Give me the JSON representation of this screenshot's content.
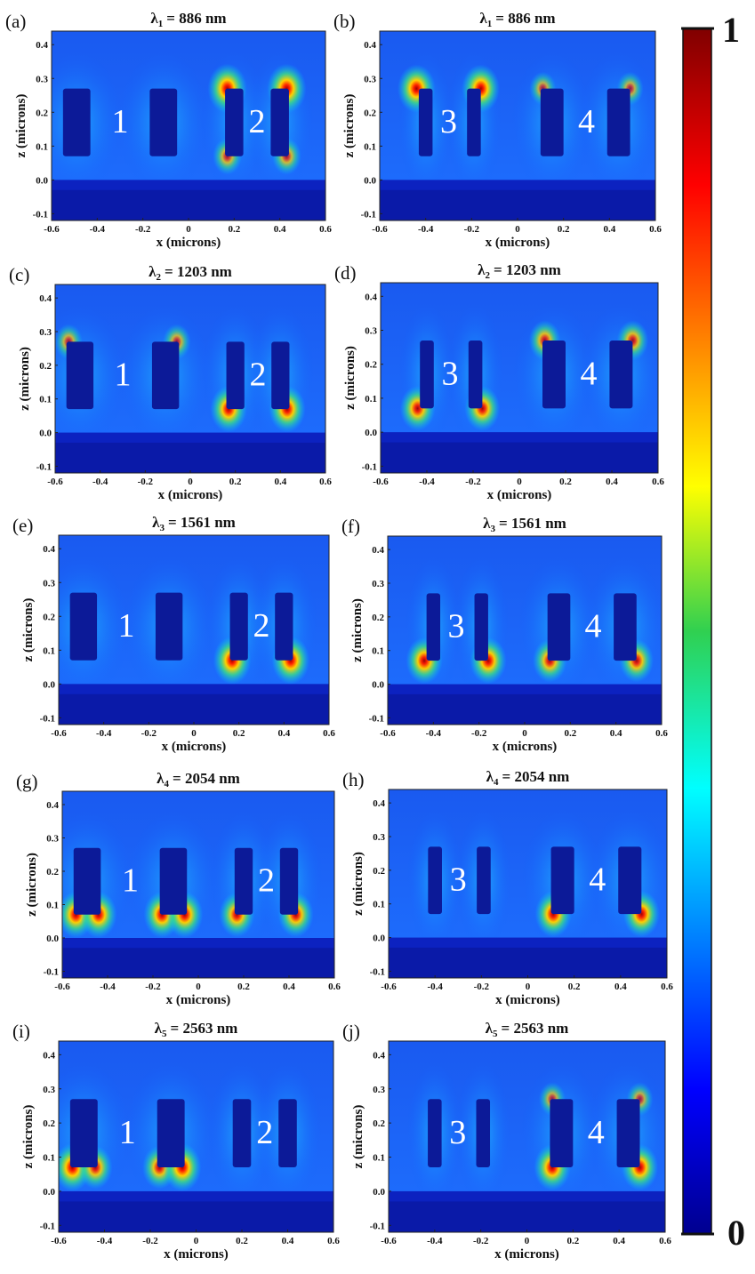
{
  "chart_data": {
    "type": "heatmap",
    "colormap": "jet",
    "colorbar": {
      "min_label": "0",
      "max_label": "1",
      "range": [
        0,
        1
      ]
    },
    "xlim": [
      -0.6,
      0.6
    ],
    "ylim": [
      -0.12,
      0.44
    ],
    "xticks": [
      "-0.6",
      "-0.4",
      "-0.2",
      "0",
      "0.2",
      "0.4",
      "0.6"
    ],
    "yticks": [
      "-0.1",
      "0.0",
      "0.1",
      "0.2",
      "0.3",
      "0.4"
    ],
    "xlabel": "x (microns)",
    "ylabel": "z (microns)",
    "panels": [
      {
        "label": "(a)",
        "lambda": "λ",
        "sub": "1",
        "value": "= 886 nm",
        "pair_labels": [
          "1",
          "2"
        ],
        "set": "A",
        "hotspots": [
          [
            0.17,
            0.27,
            1.0
          ],
          [
            0.43,
            0.27,
            1.0
          ],
          [
            0.17,
            0.07,
            0.6
          ],
          [
            0.43,
            0.07,
            0.6
          ]
        ]
      },
      {
        "label": "(b)",
        "lambda": "λ",
        "sub": "1",
        "value": "= 886 nm",
        "pair_labels": [
          "3",
          "4"
        ],
        "set": "B",
        "hotspots": [
          [
            -0.44,
            0.27,
            0.95
          ],
          [
            -0.16,
            0.27,
            0.95
          ],
          [
            0.11,
            0.27,
            0.5
          ],
          [
            0.49,
            0.27,
            0.5
          ]
        ]
      },
      {
        "label": "(c)",
        "lambda": "λ",
        "sub": "2",
        "value": "= 1203 nm",
        "pair_labels": [
          "1",
          "2"
        ],
        "set": "A",
        "hotspots": [
          [
            0.17,
            0.07,
            0.9
          ],
          [
            0.43,
            0.07,
            0.9
          ],
          [
            -0.54,
            0.27,
            0.55
          ],
          [
            -0.06,
            0.27,
            0.55
          ]
        ]
      },
      {
        "label": "(d)",
        "lambda": "λ",
        "sub": "2",
        "value": "= 1203 nm",
        "pair_labels": [
          "3",
          "4"
        ],
        "set": "B",
        "hotspots": [
          [
            -0.44,
            0.07,
            0.85
          ],
          [
            -0.16,
            0.07,
            0.85
          ],
          [
            0.11,
            0.27,
            0.7
          ],
          [
            0.49,
            0.27,
            0.7
          ]
        ]
      },
      {
        "label": "(e)",
        "lambda": "λ",
        "sub": "3",
        "value": "= 1561 nm",
        "pair_labels": [
          "1",
          "2"
        ],
        "set": "A",
        "hotspots": [
          [
            0.17,
            0.07,
            0.95
          ],
          [
            0.43,
            0.07,
            0.95
          ]
        ]
      },
      {
        "label": "(f)",
        "lambda": "λ",
        "sub": "3",
        "value": "= 1561 nm",
        "pair_labels": [
          "3",
          "4"
        ],
        "set": "B",
        "hotspots": [
          [
            -0.44,
            0.07,
            0.9
          ],
          [
            -0.16,
            0.07,
            0.9
          ],
          [
            0.11,
            0.07,
            0.8
          ],
          [
            0.49,
            0.07,
            0.8
          ]
        ]
      },
      {
        "label": "(g)",
        "lambda": "λ",
        "sub": "4",
        "value": "= 2054 nm",
        "pair_labels": [
          "1",
          "2"
        ],
        "set": "A",
        "hotspots": [
          [
            -0.54,
            0.07,
            0.9
          ],
          [
            -0.44,
            0.07,
            0.9
          ],
          [
            -0.16,
            0.07,
            0.9
          ],
          [
            -0.06,
            0.07,
            0.9
          ],
          [
            0.17,
            0.07,
            0.85
          ],
          [
            0.43,
            0.07,
            0.85
          ]
        ]
      },
      {
        "label": "(h)",
        "lambda": "λ",
        "sub": "4",
        "value": "= 2054 nm",
        "pair_labels": [
          "3",
          "4"
        ],
        "set": "B",
        "hotspots": [
          [
            0.11,
            0.07,
            0.9
          ],
          [
            0.49,
            0.07,
            0.9
          ]
        ]
      },
      {
        "label": "(i)",
        "lambda": "λ",
        "sub": "5",
        "value": "= 2563 nm",
        "pair_labels": [
          "1",
          "2"
        ],
        "set": "A",
        "hotspots": [
          [
            -0.54,
            0.07,
            0.95
          ],
          [
            -0.44,
            0.07,
            0.8
          ],
          [
            -0.16,
            0.07,
            0.8
          ],
          [
            -0.06,
            0.07,
            0.95
          ]
        ]
      },
      {
        "label": "(j)",
        "lambda": "λ",
        "sub": "5",
        "value": "= 2563 nm",
        "pair_labels": [
          "3",
          "4"
        ],
        "set": "B",
        "hotspots": [
          [
            0.11,
            0.07,
            0.9
          ],
          [
            0.49,
            0.07,
            0.9
          ],
          [
            0.11,
            0.27,
            0.5
          ],
          [
            0.49,
            0.27,
            0.5
          ]
        ]
      }
    ]
  }
}
